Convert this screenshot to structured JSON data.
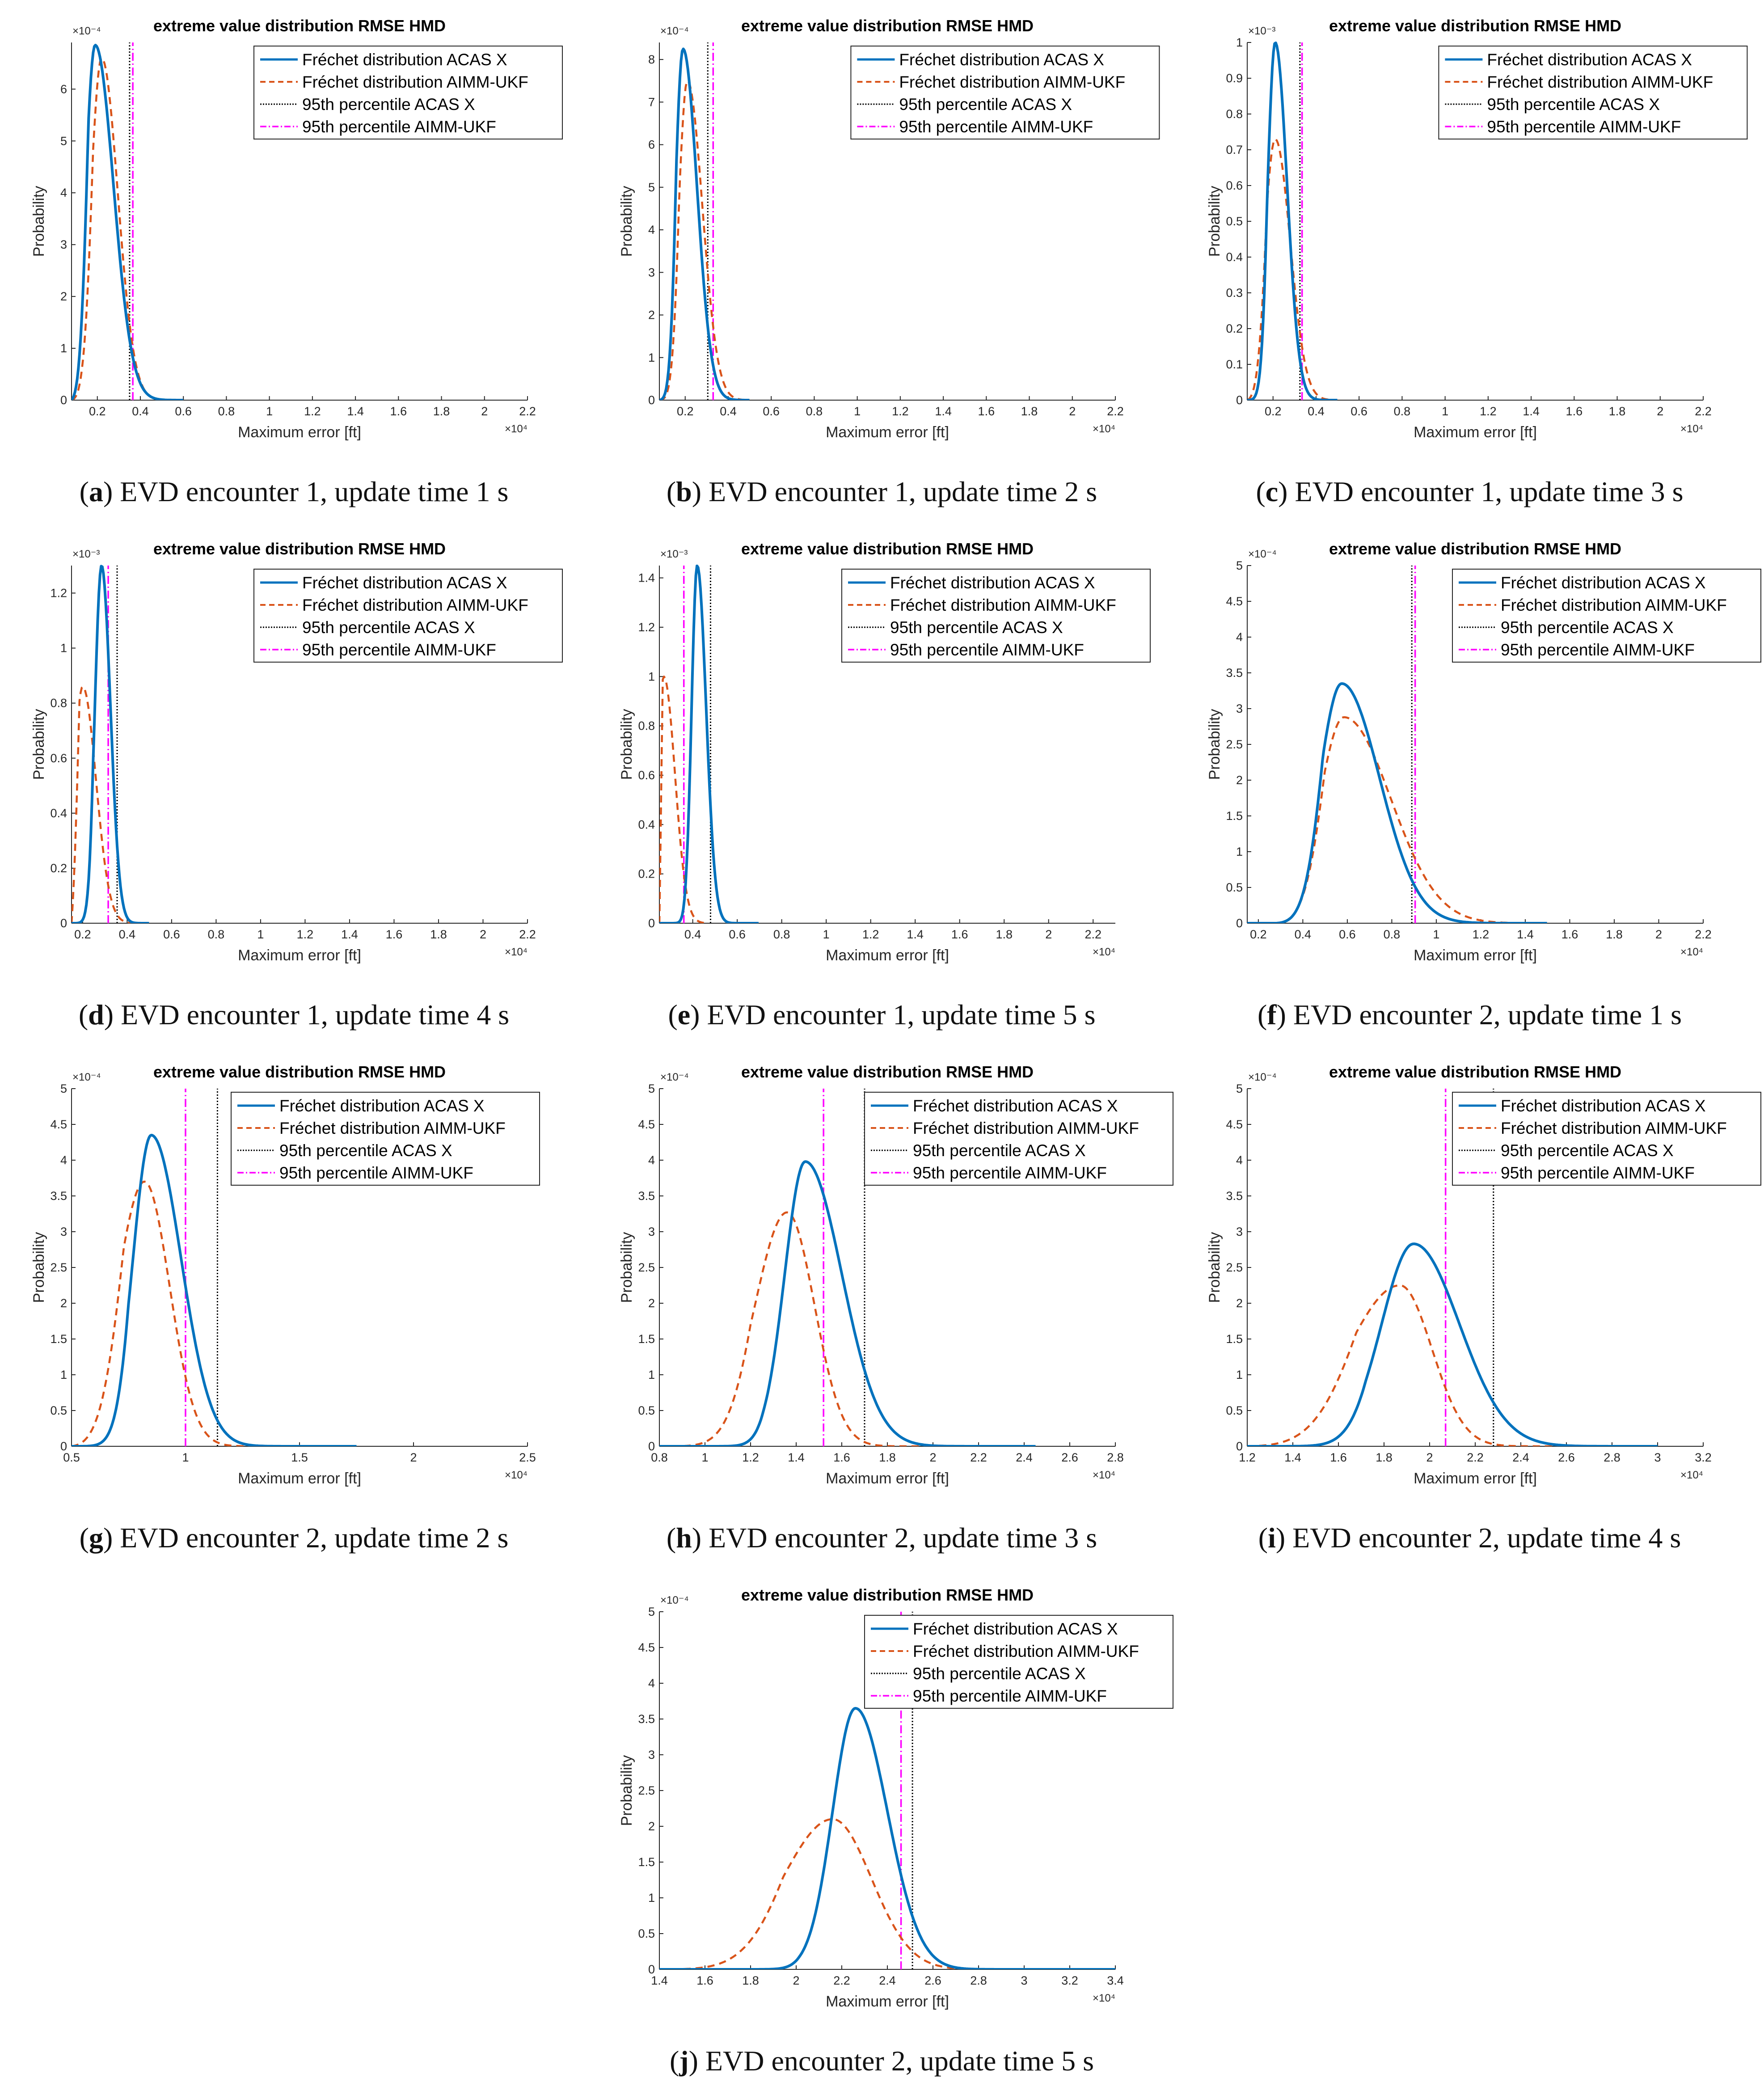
{
  "colors": {
    "acas": "#0072BD",
    "aimm": "#D95319",
    "p95_acas": "#000000",
    "p95_aimm": "#FF00FF"
  },
  "legend_labels": [
    "Fréchet distribution ACAS X",
    "Fréchet distribution AIMM-UKF",
    "95th percentile ACAS X",
    "95th percentile AIMM-UKF"
  ],
  "chart_data": [
    {
      "id": "a",
      "letter": "a",
      "caption": ") EVD encounter 1, update time 1 s",
      "type": "line",
      "title": "extreme value distribution RMSE HMD",
      "xlabel": "Maximum error [ft]",
      "ylabel": "Probability",
      "x_exponent": "×10⁴",
      "y_exponent": "×10⁻⁴",
      "y_scale": 10000,
      "xlim": [
        0.08,
        2.2
      ],
      "ylim": [
        0,
        6.9
      ],
      "xticks": [
        0.2,
        0.4,
        0.6,
        0.8,
        1,
        1.2,
        1.4,
        1.6,
        1.8,
        2,
        2.2
      ],
      "xtick_labels": [
        "0.2",
        "0.4",
        "0.6",
        "0.8",
        "1",
        "1.2",
        "1.4",
        "1.6",
        "1.8",
        "2",
        "2.2"
      ],
      "yticks": [
        0,
        1,
        2,
        3,
        4,
        5,
        6
      ],
      "ytick_labels": [
        "0",
        "1",
        "2",
        "3",
        "4",
        "5",
        "6"
      ],
      "legend_x_frac": 0.4,
      "series": [
        {
          "name": "Fréchet distribution ACAS X",
          "x0": 0.08,
          "mode": 0.19,
          "peak": 6.85,
          "sl": 0.045,
          "sr": 0.085,
          "xmax": 0.6
        },
        {
          "name": "Fréchet distribution AIMM-UKF",
          "x0": 0.08,
          "mode": 0.22,
          "peak": 6.6,
          "sl": 0.05,
          "sr": 0.075,
          "xmax": 0.6
        }
      ],
      "percentiles": [
        {
          "name": "95th percentile ACAS X",
          "x": 0.35
        },
        {
          "name": "95th percentile AIMM-UKF",
          "x": 0.365
        }
      ]
    },
    {
      "id": "b",
      "letter": "b",
      "caption": ") EVD encounter 1, update time 2 s",
      "type": "line",
      "title": "extreme value distribution RMSE HMD",
      "xlabel": "Maximum error [ft]",
      "ylabel": "Probability",
      "x_exponent": "×10⁴",
      "y_exponent": "×10⁻⁴",
      "y_scale": 10000,
      "xlim": [
        0.08,
        2.2
      ],
      "ylim": [
        0,
        8.4
      ],
      "xticks": [
        0.2,
        0.4,
        0.6,
        0.8,
        1,
        1.2,
        1.4,
        1.6,
        1.8,
        2,
        2.2
      ],
      "xtick_labels": [
        "0.2",
        "0.4",
        "0.6",
        "0.8",
        "1",
        "1.2",
        "1.4",
        "1.6",
        "1.8",
        "2",
        "2.2"
      ],
      "yticks": [
        0,
        1,
        2,
        3,
        4,
        5,
        6,
        7,
        8
      ],
      "ytick_labels": [
        "0",
        "1",
        "2",
        "3",
        "4",
        "5",
        "6",
        "7",
        "8"
      ],
      "legend_x_frac": 0.42,
      "series": [
        {
          "name": "Fréchet distribution ACAS X",
          "x0": 0.08,
          "mode": 0.19,
          "peak": 8.25,
          "sl": 0.035,
          "sr": 0.065,
          "xmax": 0.5
        },
        {
          "name": "Fréchet distribution AIMM-UKF",
          "x0": 0.08,
          "mode": 0.21,
          "peak": 7.5,
          "sl": 0.04,
          "sr": 0.07,
          "xmax": 0.5
        }
      ],
      "percentiles": [
        {
          "name": "95th percentile ACAS X",
          "x": 0.305
        },
        {
          "name": "95th percentile AIMM-UKF",
          "x": 0.33
        }
      ]
    },
    {
      "id": "c",
      "letter": "c",
      "caption": ") EVD encounter 1, update time 3 s",
      "type": "line",
      "title": "extreme value distribution RMSE HMD",
      "xlabel": "Maximum error [ft]",
      "ylabel": "Probability",
      "x_exponent": "×10⁴",
      "y_exponent": "×10⁻³",
      "y_scale": 1000,
      "xlim": [
        0.08,
        2.2
      ],
      "ylim": [
        0,
        1.0
      ],
      "xticks": [
        0.2,
        0.4,
        0.6,
        0.8,
        1,
        1.2,
        1.4,
        1.6,
        1.8,
        2,
        2.2
      ],
      "xtick_labels": [
        "0.2",
        "0.4",
        "0.6",
        "0.8",
        "1",
        "1.2",
        "1.4",
        "1.6",
        "1.8",
        "2",
        "2.2"
      ],
      "yticks": [
        0,
        0.1,
        0.2,
        0.3,
        0.4,
        0.5,
        0.6,
        0.7,
        0.8,
        0.9,
        1
      ],
      "ytick_labels": [
        "0",
        "0.1",
        "0.2",
        "0.3",
        "0.4",
        "0.5",
        "0.6",
        "0.7",
        "0.8",
        "0.9",
        "1"
      ],
      "legend_x_frac": 0.42,
      "series": [
        {
          "name": "Fréchet distribution ACAS X",
          "x0": 0.08,
          "mode": 0.21,
          "peak": 1.0,
          "sl": 0.035,
          "sr": 0.055,
          "xmax": 0.5
        },
        {
          "name": "Fréchet distribution AIMM-UKF",
          "x0": 0.08,
          "mode": 0.21,
          "peak": 0.73,
          "sl": 0.05,
          "sr": 0.07,
          "xmax": 0.5
        }
      ],
      "percentiles": [
        {
          "name": "95th percentile ACAS X",
          "x": 0.325
        },
        {
          "name": "95th percentile AIMM-UKF",
          "x": 0.335
        }
      ]
    },
    {
      "id": "d",
      "letter": "d",
      "caption": ") EVD encounter 1, update time 4 s",
      "type": "line",
      "title": "extreme value distribution RMSE HMD",
      "xlabel": "Maximum error [ft]",
      "ylabel": "Probability",
      "x_exponent": "×10⁴",
      "y_exponent": "×10⁻³",
      "y_scale": 1000,
      "xlim": [
        0.15,
        2.2
      ],
      "ylim": [
        0,
        1.3
      ],
      "xticks": [
        0.2,
        0.4,
        0.6,
        0.8,
        1,
        1.2,
        1.4,
        1.6,
        1.8,
        2,
        2.2
      ],
      "xtick_labels": [
        "0.2",
        "0.4",
        "0.6",
        "0.8",
        "1",
        "1.2",
        "1.4",
        "1.6",
        "1.8",
        "2",
        "2.2"
      ],
      "yticks": [
        0,
        0.2,
        0.4,
        0.6,
        0.8,
        1,
        1.2
      ],
      "ytick_labels": [
        "0",
        "0.2",
        "0.4",
        "0.6",
        "0.8",
        "1",
        "1.2"
      ],
      "legend_x_frac": 0.4,
      "series": [
        {
          "name": "Fréchet distribution ACAS X",
          "x0": 0.15,
          "mode": 0.285,
          "peak": 1.3,
          "sl": 0.03,
          "sr": 0.04,
          "xmax": 0.5
        },
        {
          "name": "Fréchet distribution AIMM-UKF",
          "x0": 0.15,
          "mode": 0.2,
          "peak": 0.86,
          "sl": 0.04,
          "sr": 0.06,
          "xmax": 0.5
        }
      ],
      "percentiles": [
        {
          "name": "95th percentile ACAS X",
          "x": 0.355
        },
        {
          "name": "95th percentile AIMM-UKF",
          "x": 0.315
        }
      ]
    },
    {
      "id": "e",
      "letter": "e",
      "caption": ") EVD encounter 1, update time 5 s",
      "type": "line",
      "title": "extreme value distribution RMSE HMD",
      "xlabel": "Maximum error [ft]",
      "ylabel": "Probability",
      "x_exponent": "×10⁴",
      "y_exponent": "×10⁻³",
      "y_scale": 1000,
      "xlim": [
        0.25,
        2.3
      ],
      "ylim": [
        0,
        1.45
      ],
      "xticks": [
        0.4,
        0.6,
        0.8,
        1,
        1.2,
        1.4,
        1.6,
        1.8,
        2,
        2.2
      ],
      "xtick_labels": [
        "0.4",
        "0.6",
        "0.8",
        "1",
        "1.2",
        "1.4",
        "1.6",
        "1.8",
        "2",
        "2.2"
      ],
      "yticks": [
        0,
        0.2,
        0.4,
        0.6,
        0.8,
        1,
        1.2,
        1.4
      ],
      "ytick_labels": [
        "0",
        "0.2",
        "0.4",
        "0.6",
        "0.8",
        "1",
        "1.2",
        "1.4"
      ],
      "legend_x_frac": 0.4,
      "series": [
        {
          "name": "Fréchet distribution ACAS X",
          "x0": 0.25,
          "mode": 0.42,
          "peak": 1.45,
          "sl": 0.025,
          "sr": 0.04,
          "xmax": 0.7
        },
        {
          "name": "Fréchet distribution AIMM-UKF",
          "x0": 0.25,
          "mode": 0.27,
          "peak": 1.0,
          "sl": 0.03,
          "sr": 0.05,
          "xmax": 0.45
        }
      ],
      "percentiles": [
        {
          "name": "95th percentile ACAS X",
          "x": 0.48
        },
        {
          "name": "95th percentile AIMM-UKF",
          "x": 0.36
        }
      ]
    },
    {
      "id": "f",
      "letter": "f",
      "caption": ") EVD encounter 2, update time 1 s",
      "type": "line",
      "title": "extreme value distribution RMSE HMD",
      "xlabel": "Maximum error [ft]",
      "ylabel": "Probability",
      "x_exponent": "×10⁴",
      "y_exponent": "×10⁻⁴",
      "y_scale": 10000,
      "xlim": [
        0.15,
        2.2
      ],
      "ylim": [
        0,
        5
      ],
      "xticks": [
        0.2,
        0.4,
        0.6,
        0.8,
        1,
        1.2,
        1.4,
        1.6,
        1.8,
        2,
        2.2
      ],
      "xtick_labels": [
        "0.2",
        "0.4",
        "0.6",
        "0.8",
        "1",
        "1.2",
        "1.4",
        "1.6",
        "1.8",
        "2",
        "2.2"
      ],
      "yticks": [
        0,
        0.5,
        1,
        1.5,
        2,
        2.5,
        3,
        3.5,
        4,
        4.5,
        5
      ],
      "ytick_labels": [
        "0",
        "0.5",
        "1",
        "1.5",
        "2",
        "2.5",
        "3",
        "3.5",
        "4",
        "4.5",
        "5"
      ],
      "legend_x_frac": 0.45,
      "series": [
        {
          "name": "Fréchet distribution ACAS X",
          "x0": 0.28,
          "mode": 0.575,
          "peak": 3.35,
          "sl": 0.1,
          "sr": 0.17,
          "xmax": 1.5
        },
        {
          "name": "Fréchet distribution AIMM-UKF",
          "x0": 0.28,
          "mode": 0.585,
          "peak": 2.88,
          "sl": 0.11,
          "sr": 0.21,
          "xmax": 1.5
        }
      ],
      "percentiles": [
        {
          "name": "95th percentile ACAS X",
          "x": 0.89
        },
        {
          "name": "95th percentile AIMM-UKF",
          "x": 0.905
        }
      ]
    },
    {
      "id": "g",
      "letter": "g",
      "caption": ") EVD encounter 2, update time 2 s",
      "type": "line",
      "title": "extreme value distribution RMSE HMD",
      "xlabel": "Maximum error [ft]",
      "ylabel": "Probability",
      "x_exponent": "×10⁴",
      "y_exponent": "×10⁻⁴",
      "y_scale": 10000,
      "xlim": [
        0.5,
        2.5
      ],
      "ylim": [
        0,
        5
      ],
      "xticks": [
        0.5,
        1,
        1.5,
        2,
        2.5
      ],
      "xtick_labels": [
        "0.5",
        "1",
        "1.5",
        "2",
        "2.5"
      ],
      "yticks": [
        0,
        0.5,
        1,
        1.5,
        2,
        2.5,
        3,
        3.5,
        4,
        4.5,
        5
      ],
      "ytick_labels": [
        "0",
        "0.5",
        "1",
        "1.5",
        "2",
        "2.5",
        "3",
        "3.5",
        "4",
        "4.5",
        "5"
      ],
      "legend_x_frac": 0.35,
      "series": [
        {
          "name": "Fréchet distribution ACAS X",
          "x0": 0.5,
          "mode": 0.85,
          "peak": 4.35,
          "sl": 0.08,
          "sr": 0.13,
          "xmax": 1.75
        },
        {
          "name": "Fréchet distribution AIMM-UKF",
          "x0": 0.5,
          "mode": 0.82,
          "peak": 3.7,
          "sl": 0.12,
          "sr": 0.11,
          "xmax": 1.75
        }
      ],
      "percentiles": [
        {
          "name": "95th percentile ACAS X",
          "x": 1.14
        },
        {
          "name": "95th percentile AIMM-UKF",
          "x": 1.0
        }
      ]
    },
    {
      "id": "h",
      "letter": "h",
      "caption": ") EVD encounter 2, update time 3 s",
      "type": "line",
      "title": "extreme value distribution RMSE HMD",
      "xlabel": "Maximum error [ft]",
      "ylabel": "Probability",
      "x_exponent": "×10⁴",
      "y_exponent": "×10⁻⁴",
      "y_scale": 10000,
      "xlim": [
        0.8,
        2.8
      ],
      "ylim": [
        0,
        5
      ],
      "xticks": [
        0.8,
        1,
        1.2,
        1.4,
        1.6,
        1.8,
        2,
        2.2,
        2.4,
        2.6,
        2.8
      ],
      "xtick_labels": [
        "0.8",
        "1",
        "1.2",
        "1.4",
        "1.6",
        "1.8",
        "2",
        "2.2",
        "2.4",
        "2.6",
        "2.8"
      ],
      "yticks": [
        0,
        0.5,
        1,
        1.5,
        2,
        2.5,
        3,
        3.5,
        4,
        4.5,
        5
      ],
      "ytick_labels": [
        "0",
        "0.5",
        "1",
        "1.5",
        "2",
        "2.5",
        "3",
        "3.5",
        "4",
        "4.5",
        "5"
      ],
      "legend_x_frac": 0.45,
      "series": [
        {
          "name": "Fréchet distribution ACAS X",
          "x0": 0.8,
          "mode": 1.44,
          "peak": 3.98,
          "sl": 0.09,
          "sr": 0.16,
          "xmax": 2.45
        },
        {
          "name": "Fréchet distribution AIMM-UKF",
          "x0": 0.8,
          "mode": 1.36,
          "peak": 3.27,
          "sl": 0.14,
          "sr": 0.12,
          "xmax": 2.45
        }
      ],
      "percentiles": [
        {
          "name": "95th percentile ACAS X",
          "x": 1.7
        },
        {
          "name": "95th percentile AIMM-UKF",
          "x": 1.52
        }
      ]
    },
    {
      "id": "i",
      "letter": "i",
      "caption": ") EVD encounter 2, update time 4 s",
      "type": "line",
      "title": "extreme value distribution RMSE HMD",
      "xlabel": "Maximum error [ft]",
      "ylabel": "Probability",
      "x_exponent": "×10⁴",
      "y_exponent": "×10⁻⁴",
      "y_scale": 10000,
      "xlim": [
        1.2,
        3.2
      ],
      "ylim": [
        0,
        5
      ],
      "xticks": [
        1.2,
        1.4,
        1.6,
        1.8,
        2,
        2.2,
        2.4,
        2.6,
        2.8,
        3,
        3.2
      ],
      "xtick_labels": [
        "1.2",
        "1.4",
        "1.6",
        "1.8",
        "2",
        "2.2",
        "2.4",
        "2.6",
        "2.8",
        "3",
        "3.2"
      ],
      "yticks": [
        0,
        0.5,
        1,
        1.5,
        2,
        2.5,
        3,
        3.5,
        4,
        4.5,
        5
      ],
      "ytick_labels": [
        "0",
        "0.5",
        "1",
        "1.5",
        "2",
        "2.5",
        "3",
        "3.5",
        "4",
        "4.5",
        "5"
      ],
      "legend_x_frac": 0.45,
      "series": [
        {
          "name": "Fréchet distribution ACAS X",
          "x0": 1.2,
          "mode": 1.93,
          "peak": 2.83,
          "sl": 0.14,
          "sr": 0.2,
          "xmax": 3.0
        },
        {
          "name": "Fréchet distribution AIMM-UKF",
          "x0": 1.2,
          "mode": 1.87,
          "peak": 2.25,
          "sl": 0.23,
          "sr": 0.14,
          "xmax": 3.0
        }
      ],
      "percentiles": [
        {
          "name": "95th percentile ACAS X",
          "x": 2.28
        },
        {
          "name": "95th percentile AIMM-UKF",
          "x": 2.07
        }
      ]
    },
    {
      "id": "j",
      "letter": "j",
      "caption": ") EVD encounter 2, update time 5 s",
      "type": "line",
      "title": "extreme value distribution RMSE HMD",
      "xlabel": "Maximum error [ft]",
      "ylabel": "Probability",
      "x_exponent": "×10⁴",
      "y_exponent": "×10⁻⁴",
      "y_scale": 10000,
      "xlim": [
        1.4,
        3.4
      ],
      "ylim": [
        0,
        5
      ],
      "xticks": [
        1.4,
        1.6,
        1.8,
        2,
        2.2,
        2.4,
        2.6,
        2.8,
        3,
        3.2,
        3.4
      ],
      "xtick_labels": [
        "1.4",
        "1.6",
        "1.8",
        "2",
        "2.2",
        "2.4",
        "2.6",
        "2.8",
        "3",
        "3.2",
        "3.4"
      ],
      "yticks": [
        0,
        0.5,
        1,
        1.5,
        2,
        2.5,
        3,
        3.5,
        4,
        4.5,
        5
      ],
      "ytick_labels": [
        "0",
        "0.5",
        "1",
        "1.5",
        "2",
        "2.5",
        "3",
        "3.5",
        "4",
        "4.5",
        "5"
      ],
      "legend_x_frac": 0.45,
      "series": [
        {
          "name": "Fréchet distribution ACAS X",
          "x0": 1.4,
          "mode": 2.26,
          "peak": 3.65,
          "sl": 0.1,
          "sr": 0.14,
          "xmax": 3.4
        },
        {
          "name": "Fréchet distribution AIMM-UKF",
          "x0": 1.4,
          "mode": 2.16,
          "peak": 2.1,
          "sl": 0.22,
          "sr": 0.17,
          "xmax": 3.4
        }
      ],
      "percentiles": [
        {
          "name": "95th percentile ACAS X",
          "x": 2.51
        },
        {
          "name": "95th percentile AIMM-UKF",
          "x": 2.46
        }
      ]
    }
  ]
}
